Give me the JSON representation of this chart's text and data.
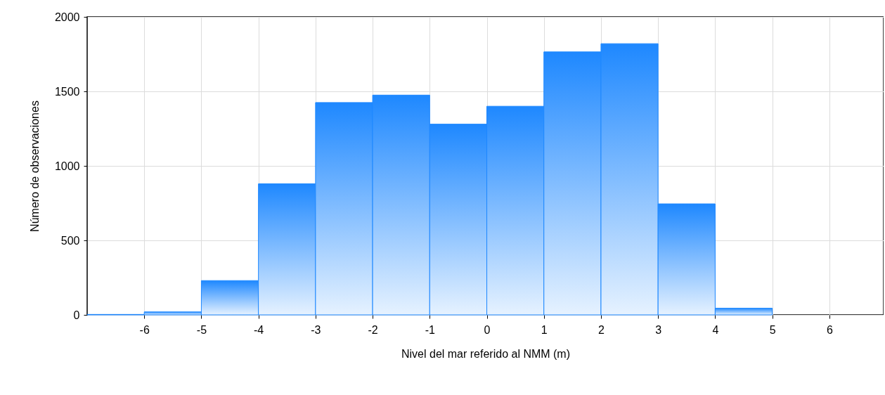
{
  "chart_data": {
    "type": "histogram",
    "xlabel": "Nivel del mar referido al NMM (m)",
    "ylabel": "Número de observaciones",
    "bins": [
      -7,
      -6,
      -5,
      -4,
      -3,
      -2,
      -1,
      0,
      1,
      2,
      3,
      4,
      5
    ],
    "values": [
      3,
      20,
      230,
      880,
      1425,
      1475,
      1280,
      1400,
      1765,
      1820,
      745,
      45
    ],
    "color": "#1e88ff",
    "xlim": [
      -7,
      6.95
    ],
    "xticks": [
      -6,
      -5,
      -4,
      -3,
      -2,
      -1,
      0,
      1,
      2,
      3,
      4,
      5,
      6
    ],
    "ylim": [
      0,
      2000
    ],
    "yticks": [
      0,
      500,
      1000,
      1500,
      2000
    ],
    "grid": true
  }
}
